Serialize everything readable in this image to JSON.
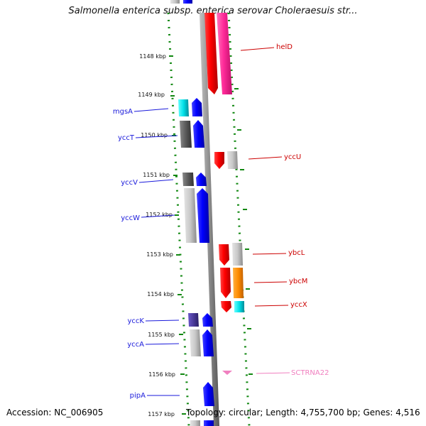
{
  "title": "Salmonella enterica subsp. enterica serovar Choleraesuis str...",
  "footer": {
    "accession": "Accession: NC_006905",
    "summary": "Topology: circular; Length: 4,755,700 bp; Genes: 4,516"
  },
  "colors": {
    "left_label": "#1a1adb",
    "right_label": "#cc0000",
    "rna_label": "#f080c0",
    "tick_dots": "#118811",
    "backbone": "#8c8c8c"
  },
  "ticks": [
    "1148 kbp",
    "1149 kbp",
    "1150 kbp",
    "1151 kbp",
    "1152 kbp",
    "1153 kbp",
    "1154 kbp",
    "1155 kbp",
    "1156 kbp",
    "1157 kbp"
  ],
  "left_labels": [
    "mgsA",
    "yccT",
    "yccV",
    "yccW",
    "yccK",
    "yccA",
    "pipA"
  ],
  "right_labels": [
    "helD",
    "yccU",
    "ybcL",
    "ybcM",
    "yccX",
    "SCTRNA22"
  ]
}
